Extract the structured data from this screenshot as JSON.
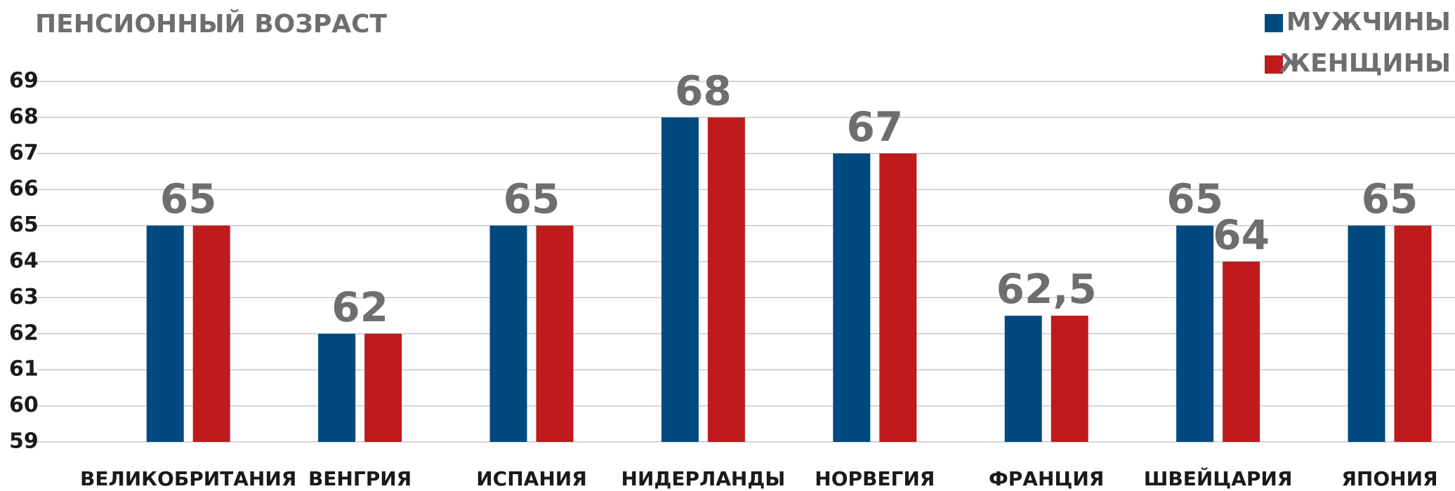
{
  "chart_data": {
    "type": "bar",
    "title": "ПЕНСИОННЫЙ ВОЗРАСТ",
    "categories": [
      "ВЕЛИКОБРИТАНИЯ",
      "ВЕНГРИЯ",
      "ИСПАНИЯ",
      "НИДЕРЛАНДЫ",
      "НОРВЕГИЯ",
      "ФРАНЦИЯ",
      "ШВЕЙЦАРИЯ",
      "ЯПОНИЯ"
    ],
    "series": [
      {
        "name": "МУЖЧИНЫ",
        "color": "#004a80",
        "values": [
          65,
          62,
          65,
          68,
          67,
          62.5,
          65,
          65
        ],
        "value_labels": [
          "65",
          "62",
          "65",
          "68",
          "67",
          "62,5",
          "65",
          "65"
        ]
      },
      {
        "name": "ЖЕНЩИНЫ",
        "color": "#bf1a1c",
        "values": [
          65,
          62,
          65,
          68,
          67,
          62.5,
          64,
          65
        ],
        "value_labels": [
          null,
          null,
          null,
          null,
          null,
          null,
          "64",
          null
        ]
      }
    ],
    "ylim": [
      59,
      69
    ],
    "yticks": [
      59,
      60,
      61,
      62,
      63,
      64,
      65,
      66,
      67,
      68,
      69
    ],
    "grid": true,
    "legend": "top-right"
  }
}
